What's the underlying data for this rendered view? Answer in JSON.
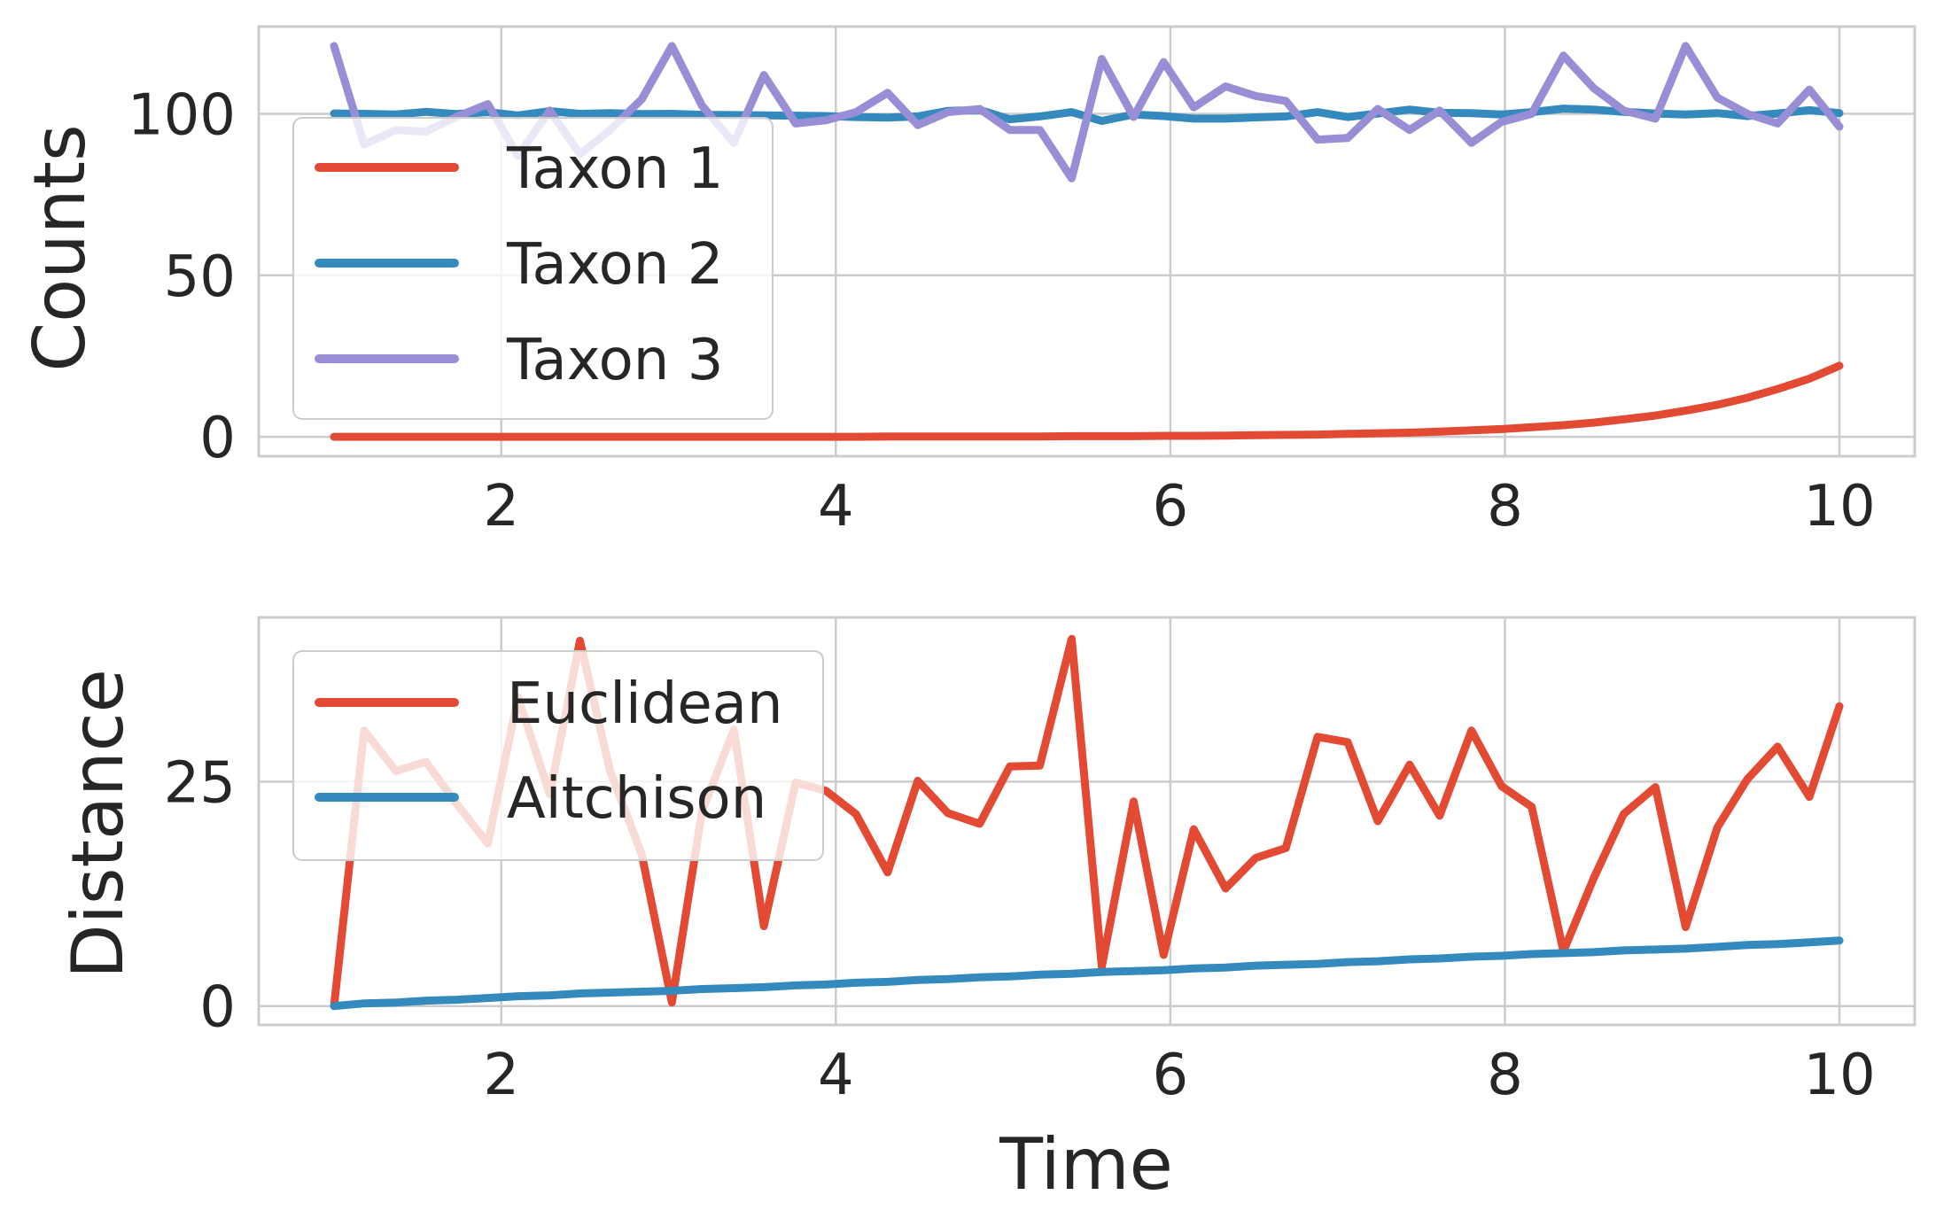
{
  "chart_data": [
    {
      "type": "line",
      "title": "",
      "xlabel": "",
      "ylabel": "Counts",
      "xlim": [
        0.55,
        10.45
      ],
      "ylim": [
        -6,
        127
      ],
      "xticks": [
        2,
        4,
        6,
        8,
        10
      ],
      "xtick_labels": [
        "2",
        "4",
        "6",
        "8",
        "10"
      ],
      "yticks": [
        0,
        50,
        100
      ],
      "ytick_labels": [
        "0",
        "50",
        "100"
      ],
      "grid": true,
      "legend": "left",
      "x": [
        1.0,
        1.18,
        1.37,
        1.55,
        1.73,
        1.92,
        2.1,
        2.29,
        2.47,
        2.65,
        2.84,
        3.02,
        3.2,
        3.39,
        3.57,
        3.76,
        3.94,
        4.12,
        4.31,
        4.49,
        4.67,
        4.86,
        5.04,
        5.22,
        5.41,
        5.59,
        5.78,
        5.96,
        6.14,
        6.33,
        6.51,
        6.69,
        6.88,
        7.06,
        7.24,
        7.43,
        7.61,
        7.8,
        7.98,
        8.16,
        8.35,
        8.53,
        8.71,
        8.9,
        9.08,
        9.27,
        9.45,
        9.63,
        9.82,
        10.0
      ],
      "series": [
        {
          "name": "Taxon 1",
          "color": "#E24A33",
          "values": [
            0.0,
            0.0,
            0.0,
            0.0,
            0.0,
            0.0,
            0.0,
            0.0,
            0.0,
            0.0,
            0.0,
            0.0,
            0.0,
            0.0,
            0.0,
            0.0,
            0.0,
            0.0,
            0.1,
            0.1,
            0.1,
            0.1,
            0.1,
            0.1,
            0.2,
            0.2,
            0.2,
            0.3,
            0.3,
            0.4,
            0.5,
            0.6,
            0.7,
            0.9,
            1.1,
            1.3,
            1.6,
            2.0,
            2.4,
            3.0,
            3.6,
            4.4,
            5.4,
            6.6,
            8.1,
            9.9,
            12.1,
            14.8,
            18.0,
            22.0
          ]
        },
        {
          "name": "Taxon 2",
          "color": "#348ABD",
          "values": [
            100.1,
            100.0,
            99.8,
            100.6,
            99.9,
            100.5,
            99.5,
            100.8,
            100.0,
            100.2,
            99.9,
            100.0,
            99.7,
            99.6,
            99.5,
            99.4,
            99.3,
            99.0,
            98.8,
            99.2,
            100.9,
            101.2,
            98.3,
            99.2,
            100.5,
            97.8,
            99.8,
            99.3,
            98.5,
            98.5,
            98.9,
            99.2,
            100.5,
            99.0,
            100.1,
            101.3,
            100.3,
            100.2,
            99.8,
            100.5,
            101.6,
            101.3,
            100.6,
            100.1,
            99.8,
            100.2,
            99.3,
            100.1,
            101.1,
            100.2
          ]
        },
        {
          "name": "Taxon 3",
          "color": "#988ED5",
          "values": [
            121.0,
            90.5,
            95.0,
            94.5,
            99.0,
            103.0,
            87.0,
            101.0,
            87.5,
            95.0,
            104.5,
            121.0,
            102.5,
            91.0,
            112.0,
            97.0,
            98.0,
            100.5,
            106.5,
            96.5,
            100.5,
            101.5,
            95.0,
            95.0,
            80.0,
            117.0,
            99.0,
            116.0,
            102.0,
            108.5,
            105.5,
            104.0,
            92.0,
            92.5,
            101.5,
            95.0,
            101.0,
            91.0,
            97.5,
            100.0,
            118.0,
            108.0,
            101.0,
            98.5,
            121.0,
            105.0,
            100.0,
            97.0,
            107.5,
            96.0
          ]
        }
      ]
    },
    {
      "type": "line",
      "title": "",
      "xlabel": "Time",
      "ylabel": "Distance",
      "xlim": [
        0.55,
        10.45
      ],
      "ylim": [
        -2.1,
        43.3
      ],
      "xticks": [
        2,
        4,
        6,
        8,
        10
      ],
      "xtick_labels": [
        "2",
        "4",
        "6",
        "8",
        "10"
      ],
      "yticks": [
        0,
        25
      ],
      "ytick_labels": [
        "0",
        "25"
      ],
      "grid": true,
      "legend": "top-left",
      "x": [
        1.0,
        1.18,
        1.37,
        1.55,
        1.73,
        1.92,
        2.1,
        2.29,
        2.47,
        2.65,
        2.84,
        3.02,
        3.2,
        3.39,
        3.57,
        3.76,
        3.94,
        4.12,
        4.31,
        4.49,
        4.67,
        4.86,
        5.04,
        5.22,
        5.41,
        5.59,
        5.78,
        5.96,
        6.14,
        6.33,
        6.51,
        6.69,
        6.88,
        7.06,
        7.24,
        7.43,
        7.61,
        7.8,
        7.98,
        8.16,
        8.35,
        8.53,
        8.71,
        8.9,
        9.08,
        9.27,
        9.45,
        9.63,
        9.82,
        10.0
      ],
      "series": [
        {
          "name": "Euclidean",
          "color": "#E24A33",
          "values": [
            0.0,
            30.7,
            26.2,
            27.2,
            22.6,
            18.1,
            34.4,
            23.6,
            40.7,
            26.2,
            16.9,
            0.4,
            21.7,
            30.8,
            8.9,
            24.9,
            24.0,
            21.4,
            14.9,
            25.1,
            21.5,
            20.3,
            26.7,
            26.8,
            40.9,
            4.4,
            22.8,
            5.7,
            19.7,
            13.1,
            16.5,
            17.6,
            30.0,
            29.4,
            20.6,
            26.9,
            21.2,
            30.7,
            24.5,
            22.2,
            6.1,
            14.2,
            21.4,
            24.4,
            8.8,
            19.9,
            25.3,
            28.9,
            23.3,
            33.4
          ]
        },
        {
          "name": "Aitchison",
          "color": "#348ABD",
          "values": [
            0.0,
            0.3,
            0.4,
            0.6,
            0.7,
            0.9,
            1.1,
            1.2,
            1.4,
            1.5,
            1.6,
            1.7,
            1.9,
            2.0,
            2.1,
            2.3,
            2.4,
            2.6,
            2.7,
            2.9,
            3.0,
            3.2,
            3.3,
            3.5,
            3.6,
            3.8,
            3.9,
            4.0,
            4.2,
            4.3,
            4.5,
            4.6,
            4.7,
            4.9,
            5.0,
            5.2,
            5.3,
            5.5,
            5.6,
            5.8,
            5.9,
            6.0,
            6.2,
            6.3,
            6.4,
            6.6,
            6.8,
            6.9,
            7.1,
            7.3
          ]
        }
      ]
    }
  ]
}
